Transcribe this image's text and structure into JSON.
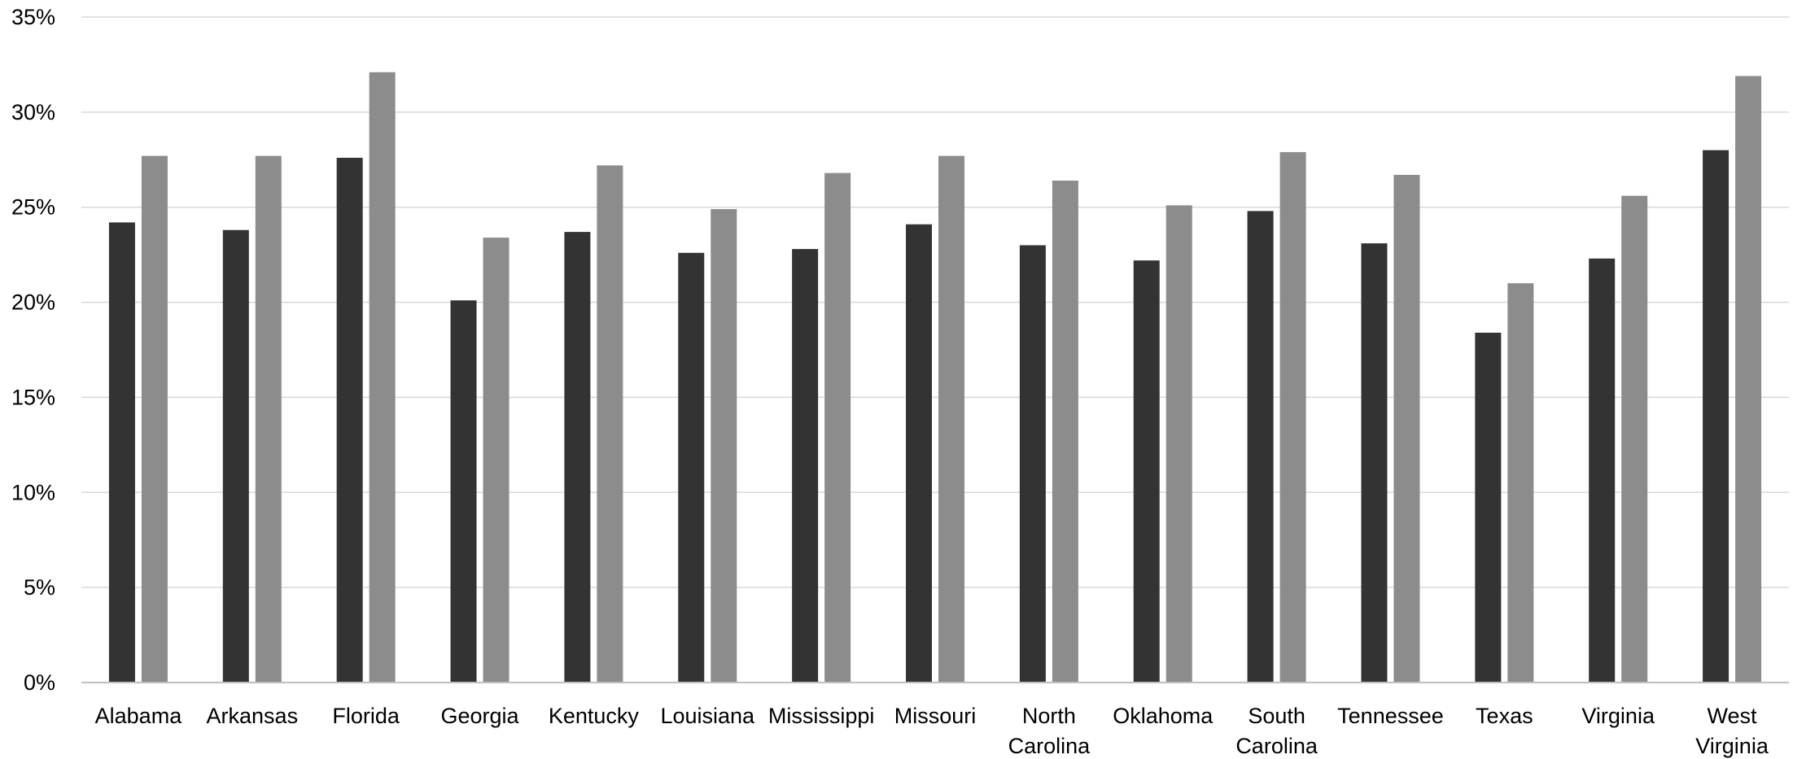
{
  "colors": {
    "series_dark": "#333333",
    "series_light": "#8c8c8c",
    "grid": "#d9d9d9"
  },
  "chart_data": {
    "type": "bar",
    "title": "",
    "xlabel": "",
    "ylabel": "",
    "ylim": [
      0,
      35
    ],
    "yticks": [
      "0%",
      "5%",
      "10%",
      "15%",
      "20%",
      "25%",
      "30%",
      "35%"
    ],
    "ytick_values": [
      0,
      5,
      10,
      15,
      20,
      25,
      30,
      35
    ],
    "grid": true,
    "legend": "none",
    "categories": [
      [
        "Alabama"
      ],
      [
        "Arkansas"
      ],
      [
        "Florida"
      ],
      [
        "Georgia"
      ],
      [
        "Kentucky"
      ],
      [
        "Louisiana"
      ],
      [
        "Mississippi"
      ],
      [
        "Missouri"
      ],
      [
        "North",
        "Carolina"
      ],
      [
        "Oklahoma"
      ],
      [
        "South",
        "Carolina"
      ],
      [
        "Tennessee"
      ],
      [
        "Texas"
      ],
      [
        "Virginia"
      ],
      [
        "West",
        "Virginia"
      ]
    ],
    "series": [
      {
        "values": [
          24.2,
          23.8,
          27.6,
          20.1,
          23.7,
          22.6,
          22.8,
          24.1,
          23.0,
          22.2,
          24.8,
          23.1,
          18.4,
          22.3,
          28.0
        ]
      },
      {
        "values": [
          27.7,
          27.7,
          32.1,
          23.4,
          27.2,
          24.9,
          26.8,
          27.7,
          26.4,
          25.1,
          27.9,
          26.7,
          21.0,
          25.6,
          31.9
        ]
      }
    ]
  }
}
